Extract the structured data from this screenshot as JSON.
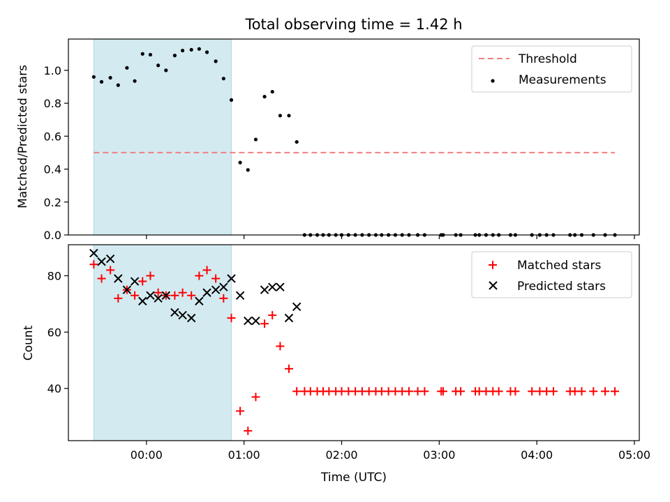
{
  "figure": {
    "title": "Total observing time = 1.42 h"
  },
  "chart_data": [
    {
      "type": "scatter",
      "ylabel": "Matched/Predicted stars",
      "xlabel": "",
      "xlim": [
        -0.8,
        5.05
      ],
      "ylim": [
        0,
        1.19
      ],
      "yticks": [
        0.0,
        0.2,
        0.4,
        0.6,
        0.8,
        1.0
      ],
      "ytick_labels": [
        "0.0",
        "0.2",
        "0.4",
        "0.6",
        "0.8",
        "1.0"
      ],
      "shaded_span": {
        "x": [
          -0.54,
          0.87
        ],
        "color": "#d3eaf1"
      },
      "legend": {
        "placement": "top-right",
        "entries": [
          "Threshold",
          "Measurements"
        ]
      },
      "threshold": {
        "name": "Threshold",
        "y": 0.5,
        "x": [
          -0.54,
          4.8
        ],
        "color": "#f08080",
        "style": "dashed"
      },
      "series": [
        {
          "name": "Measurements",
          "marker": "dot",
          "color": "#000000",
          "points": [
            [
              -0.54,
              0.96
            ],
            [
              -0.46,
              0.93
            ],
            [
              -0.37,
              0.955
            ],
            [
              -0.29,
              0.91
            ],
            [
              -0.2,
              1.015
            ],
            [
              -0.12,
              0.935
            ],
            [
              -0.04,
              1.1
            ],
            [
              0.04,
              1.095
            ],
            [
              0.12,
              1.03
            ],
            [
              0.2,
              1.0
            ],
            [
              0.29,
              1.09
            ],
            [
              0.37,
              1.12
            ],
            [
              0.46,
              1.125
            ],
            [
              0.54,
              1.13
            ],
            [
              0.62,
              1.11
            ],
            [
              0.71,
              1.055
            ],
            [
              0.79,
              0.95
            ],
            [
              0.87,
              0.82
            ],
            [
              0.96,
              0.44
            ],
            [
              1.04,
              0.395
            ],
            [
              1.12,
              0.58
            ],
            [
              1.21,
              0.84
            ],
            [
              1.29,
              0.87
            ],
            [
              1.37,
              0.725
            ],
            [
              1.46,
              0.725
            ],
            [
              1.54,
              0.565
            ],
            [
              1.62,
              0
            ],
            [
              1.68,
              0
            ],
            [
              1.75,
              0
            ],
            [
              1.81,
              0
            ],
            [
              1.87,
              0
            ],
            [
              1.94,
              0
            ],
            [
              2.0,
              0
            ],
            [
              2.07,
              0
            ],
            [
              2.14,
              0
            ],
            [
              2.21,
              0
            ],
            [
              2.28,
              0
            ],
            [
              2.35,
              0
            ],
            [
              2.41,
              0
            ],
            [
              2.48,
              0
            ],
            [
              2.55,
              0
            ],
            [
              2.62,
              0
            ],
            [
              2.69,
              0
            ],
            [
              2.78,
              0
            ],
            [
              2.85,
              0
            ],
            [
              3.02,
              0
            ],
            [
              3.04,
              0
            ],
            [
              3.17,
              0
            ],
            [
              3.22,
              0
            ],
            [
              3.37,
              0
            ],
            [
              3.41,
              0
            ],
            [
              3.48,
              0
            ],
            [
              3.55,
              0
            ],
            [
              3.61,
              0
            ],
            [
              3.73,
              0
            ],
            [
              3.78,
              0
            ],
            [
              3.95,
              0
            ],
            [
              4.03,
              0
            ],
            [
              4.1,
              0
            ],
            [
              4.17,
              0
            ],
            [
              4.34,
              0
            ],
            [
              4.39,
              0
            ],
            [
              4.46,
              0
            ],
            [
              4.58,
              0
            ],
            [
              4.7,
              0
            ],
            [
              4.8,
              0
            ]
          ]
        }
      ]
    },
    {
      "type": "scatter",
      "ylabel": "Count",
      "xlabel": "Time (UTC)",
      "xlim": [
        -0.8,
        5.05
      ],
      "ylim": [
        21.5,
        91
      ],
      "yticks": [
        40,
        60,
        80
      ],
      "ytick_labels": [
        "40",
        "60",
        "80"
      ],
      "xticks": [
        0,
        1,
        2,
        3,
        4,
        5
      ],
      "xtick_labels": [
        "00:00",
        "01:00",
        "02:00",
        "03:00",
        "04:00",
        "05:00"
      ],
      "shaded_span": {
        "x": [
          -0.54,
          0.87
        ],
        "color": "#d3eaf1"
      },
      "legend": {
        "placement": "top-right",
        "entries": [
          "Matched stars",
          "Predicted stars"
        ]
      },
      "series": [
        {
          "name": "Matched stars",
          "marker": "plus",
          "color": "#ff0000",
          "points": [
            [
              -0.54,
              84
            ],
            [
              -0.46,
              79
            ],
            [
              -0.37,
              82
            ],
            [
              -0.29,
              72
            ],
            [
              -0.2,
              75
            ],
            [
              -0.12,
              73
            ],
            [
              -0.04,
              78
            ],
            [
              0.04,
              80
            ],
            [
              0.12,
              74
            ],
            [
              0.2,
              73
            ],
            [
              0.29,
              73
            ],
            [
              0.37,
              74
            ],
            [
              0.46,
              73
            ],
            [
              0.54,
              80
            ],
            [
              0.62,
              82
            ],
            [
              0.71,
              79
            ],
            [
              0.79,
              72
            ],
            [
              0.87,
              65
            ],
            [
              0.96,
              32
            ],
            [
              1.04,
              25
            ],
            [
              1.12,
              37
            ],
            [
              1.21,
              63
            ],
            [
              1.29,
              66
            ],
            [
              1.37,
              55
            ],
            [
              1.46,
              47
            ],
            [
              1.54,
              39
            ],
            [
              1.62,
              39
            ],
            [
              1.68,
              39
            ],
            [
              1.75,
              39
            ],
            [
              1.81,
              39
            ],
            [
              1.87,
              39
            ],
            [
              1.94,
              39
            ],
            [
              2.0,
              39
            ],
            [
              2.07,
              39
            ],
            [
              2.14,
              39
            ],
            [
              2.21,
              39
            ],
            [
              2.28,
              39
            ],
            [
              2.35,
              39
            ],
            [
              2.41,
              39
            ],
            [
              2.48,
              39
            ],
            [
              2.55,
              39
            ],
            [
              2.62,
              39
            ],
            [
              2.69,
              39
            ],
            [
              2.78,
              39
            ],
            [
              2.85,
              39
            ],
            [
              3.02,
              39
            ],
            [
              3.04,
              39
            ],
            [
              3.17,
              39
            ],
            [
              3.22,
              39
            ],
            [
              3.37,
              39
            ],
            [
              3.41,
              39
            ],
            [
              3.48,
              39
            ],
            [
              3.55,
              39
            ],
            [
              3.61,
              39
            ],
            [
              3.73,
              39
            ],
            [
              3.78,
              39
            ],
            [
              3.95,
              39
            ],
            [
              4.03,
              39
            ],
            [
              4.1,
              39
            ],
            [
              4.17,
              39
            ],
            [
              4.34,
              39
            ],
            [
              4.39,
              39
            ],
            [
              4.46,
              39
            ],
            [
              4.58,
              39
            ],
            [
              4.7,
              39
            ],
            [
              4.8,
              39
            ]
          ]
        },
        {
          "name": "Predicted stars",
          "marker": "x",
          "color": "#000000",
          "points": [
            [
              -0.54,
              88
            ],
            [
              -0.46,
              85
            ],
            [
              -0.37,
              86
            ],
            [
              -0.29,
              79
            ],
            [
              -0.2,
              75
            ],
            [
              -0.12,
              78
            ],
            [
              -0.04,
              71
            ],
            [
              0.04,
              73
            ],
            [
              0.12,
              72
            ],
            [
              0.2,
              73
            ],
            [
              0.29,
              67
            ],
            [
              0.37,
              66
            ],
            [
              0.46,
              65
            ],
            [
              0.54,
              71
            ],
            [
              0.62,
              74
            ],
            [
              0.71,
              75
            ],
            [
              0.79,
              76
            ],
            [
              0.87,
              79
            ],
            [
              0.96,
              73
            ],
            [
              1.04,
              64
            ],
            [
              1.12,
              64
            ],
            [
              1.21,
              75
            ],
            [
              1.29,
              76
            ],
            [
              1.37,
              76
            ],
            [
              1.46,
              65
            ],
            [
              1.54,
              69
            ]
          ]
        }
      ]
    }
  ]
}
